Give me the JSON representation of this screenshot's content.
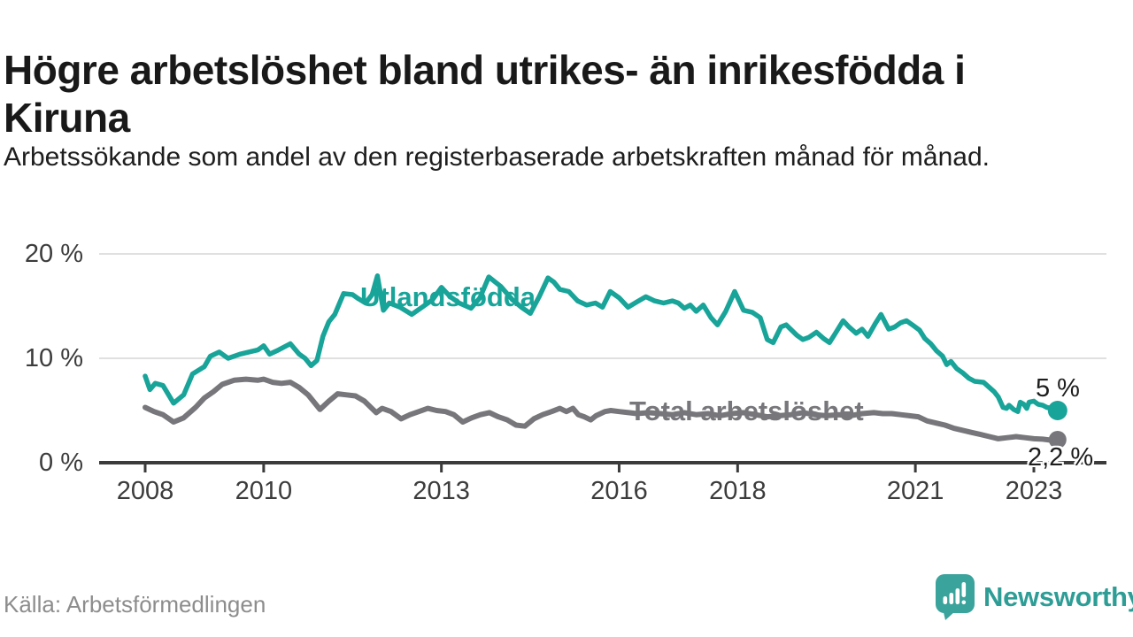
{
  "header": {
    "title": "Högre arbetslöshet bland utrikes- än inrikesfödda i Kiruna",
    "subtitle": "Arbetssökande som andel av den registerbaserade arbetskraften månad för månad."
  },
  "footer": {
    "source": "Källa: Arbetsförmedlingen",
    "brand": "Newsworthy"
  },
  "colors": {
    "accent_teal": "#18a499",
    "line_gray": "#77777b",
    "brand_teal": "#2e9d96",
    "logo_icon_teal": "#3aa39b",
    "axis": "#3b3b3b",
    "grid": "#e0e0e0",
    "text_dark": "#1d1d1d",
    "text_gray": "#8d8d8d"
  },
  "chart_data": {
    "type": "line",
    "title": "Högre arbetslöshet bland utrikes- än inrikesfödda i Kiruna",
    "xlabel": "",
    "ylabel": "",
    "unit": "%",
    "grid": "horizontal",
    "legend_position": "inline-on-line",
    "xlim": [
      2007.9,
      2023.55
    ],
    "ylim": [
      0,
      20
    ],
    "x_ticks": [
      {
        "value": 2008,
        "label": "2008"
      },
      {
        "value": 2010,
        "label": "2010"
      },
      {
        "value": 2013,
        "label": "2013"
      },
      {
        "value": 2016,
        "label": "2016"
      },
      {
        "value": 2018,
        "label": "2018"
      },
      {
        "value": 2021,
        "label": "2021"
      },
      {
        "value": 2023,
        "label": "2023"
      }
    ],
    "y_ticks": [
      {
        "value": 0,
        "label": "0 %"
      },
      {
        "value": 10,
        "label": "10 %"
      },
      {
        "value": 20,
        "label": "20 %"
      }
    ],
    "series": [
      {
        "name": "Utlandsfödda",
        "color": "#18a499",
        "end_label": "5 %",
        "end_value": 5.0,
        "points": [
          [
            2008.0,
            8.3
          ],
          [
            2008.08,
            7.0
          ],
          [
            2008.17,
            7.6
          ],
          [
            2008.3,
            7.4
          ],
          [
            2008.48,
            5.7
          ],
          [
            2008.65,
            6.5
          ],
          [
            2008.8,
            8.5
          ],
          [
            2009.0,
            9.2
          ],
          [
            2009.1,
            10.2
          ],
          [
            2009.25,
            10.6
          ],
          [
            2009.4,
            10.0
          ],
          [
            2009.6,
            10.4
          ],
          [
            2009.75,
            10.6
          ],
          [
            2009.9,
            10.8
          ],
          [
            2010.0,
            11.2
          ],
          [
            2010.1,
            10.4
          ],
          [
            2010.25,
            10.8
          ],
          [
            2010.45,
            11.4
          ],
          [
            2010.6,
            10.4
          ],
          [
            2010.7,
            10.0
          ],
          [
            2010.8,
            9.3
          ],
          [
            2010.9,
            9.8
          ],
          [
            2011.0,
            12.1
          ],
          [
            2011.1,
            13.5
          ],
          [
            2011.2,
            14.2
          ],
          [
            2011.35,
            16.2
          ],
          [
            2011.5,
            16.1
          ],
          [
            2011.6,
            15.7
          ],
          [
            2011.72,
            15.3
          ],
          [
            2011.83,
            16.1
          ],
          [
            2011.92,
            17.9
          ],
          [
            2012.02,
            14.6
          ],
          [
            2012.12,
            15.3
          ],
          [
            2012.3,
            14.9
          ],
          [
            2012.5,
            14.2
          ],
          [
            2012.7,
            15.0
          ],
          [
            2012.85,
            15.6
          ],
          [
            2013.0,
            16.8
          ],
          [
            2013.15,
            15.9
          ],
          [
            2013.3,
            15.3
          ],
          [
            2013.5,
            14.8
          ],
          [
            2013.65,
            15.8
          ],
          [
            2013.8,
            17.8
          ],
          [
            2014.0,
            16.9
          ],
          [
            2014.2,
            15.6
          ],
          [
            2014.35,
            14.9
          ],
          [
            2014.5,
            14.3
          ],
          [
            2014.65,
            15.9
          ],
          [
            2014.8,
            17.7
          ],
          [
            2014.9,
            17.3
          ],
          [
            2015.0,
            16.6
          ],
          [
            2015.15,
            16.4
          ],
          [
            2015.3,
            15.5
          ],
          [
            2015.45,
            15.1
          ],
          [
            2015.6,
            15.3
          ],
          [
            2015.72,
            14.9
          ],
          [
            2015.85,
            16.4
          ],
          [
            2016.0,
            15.8
          ],
          [
            2016.15,
            14.9
          ],
          [
            2016.3,
            15.4
          ],
          [
            2016.45,
            15.9
          ],
          [
            2016.6,
            15.5
          ],
          [
            2016.75,
            15.3
          ],
          [
            2016.9,
            15.5
          ],
          [
            2017.0,
            15.3
          ],
          [
            2017.1,
            14.8
          ],
          [
            2017.2,
            15.1
          ],
          [
            2017.3,
            14.5
          ],
          [
            2017.42,
            15.1
          ],
          [
            2017.55,
            13.9
          ],
          [
            2017.66,
            13.2
          ],
          [
            2017.8,
            14.5
          ],
          [
            2017.95,
            16.4
          ],
          [
            2018.1,
            14.6
          ],
          [
            2018.25,
            14.4
          ],
          [
            2018.38,
            13.9
          ],
          [
            2018.5,
            11.8
          ],
          [
            2018.6,
            11.5
          ],
          [
            2018.73,
            13.0
          ],
          [
            2018.82,
            13.2
          ],
          [
            2019.0,
            12.2
          ],
          [
            2019.1,
            11.8
          ],
          [
            2019.2,
            12.0
          ],
          [
            2019.33,
            12.5
          ],
          [
            2019.45,
            11.9
          ],
          [
            2019.55,
            11.5
          ],
          [
            2019.65,
            12.4
          ],
          [
            2019.78,
            13.6
          ],
          [
            2019.88,
            13.0
          ],
          [
            2020.0,
            12.4
          ],
          [
            2020.1,
            12.8
          ],
          [
            2020.2,
            12.1
          ],
          [
            2020.32,
            13.3
          ],
          [
            2020.42,
            14.2
          ],
          [
            2020.55,
            12.8
          ],
          [
            2020.65,
            13.0
          ],
          [
            2020.75,
            13.4
          ],
          [
            2020.85,
            13.6
          ],
          [
            2020.95,
            13.2
          ],
          [
            2021.07,
            12.7
          ],
          [
            2021.16,
            11.9
          ],
          [
            2021.26,
            11.4
          ],
          [
            2021.36,
            10.7
          ],
          [
            2021.46,
            10.2
          ],
          [
            2021.53,
            9.4
          ],
          [
            2021.6,
            9.7
          ],
          [
            2021.7,
            9.0
          ],
          [
            2021.8,
            8.6
          ],
          [
            2021.9,
            8.1
          ],
          [
            2022.0,
            7.8
          ],
          [
            2022.15,
            7.7
          ],
          [
            2022.25,
            7.2
          ],
          [
            2022.33,
            6.8
          ],
          [
            2022.4,
            6.3
          ],
          [
            2022.48,
            5.3
          ],
          [
            2022.54,
            5.2
          ],
          [
            2022.58,
            5.5
          ],
          [
            2022.66,
            5.1
          ],
          [
            2022.73,
            4.9
          ],
          [
            2022.77,
            5.8
          ],
          [
            2022.83,
            5.6
          ],
          [
            2022.88,
            5.2
          ],
          [
            2022.92,
            5.8
          ],
          [
            2023.0,
            5.9
          ],
          [
            2023.07,
            5.6
          ],
          [
            2023.15,
            5.5
          ],
          [
            2023.22,
            5.3
          ],
          [
            2023.3,
            5.2
          ],
          [
            2023.4,
            5.0
          ]
        ]
      },
      {
        "name": "Total arbetslöshet",
        "color": "#77777b",
        "end_label": "2,2 %",
        "end_value": 2.2,
        "points": [
          [
            2008.0,
            5.3
          ],
          [
            2008.15,
            4.9
          ],
          [
            2008.3,
            4.6
          ],
          [
            2008.48,
            3.9
          ],
          [
            2008.65,
            4.3
          ],
          [
            2008.85,
            5.3
          ],
          [
            2009.0,
            6.2
          ],
          [
            2009.15,
            6.8
          ],
          [
            2009.3,
            7.5
          ],
          [
            2009.5,
            7.9
          ],
          [
            2009.7,
            8.0
          ],
          [
            2009.9,
            7.9
          ],
          [
            2010.0,
            8.0
          ],
          [
            2010.15,
            7.7
          ],
          [
            2010.3,
            7.6
          ],
          [
            2010.45,
            7.7
          ],
          [
            2010.6,
            7.2
          ],
          [
            2010.75,
            6.5
          ],
          [
            2010.95,
            5.1
          ],
          [
            2011.1,
            5.9
          ],
          [
            2011.25,
            6.6
          ],
          [
            2011.4,
            6.5
          ],
          [
            2011.55,
            6.4
          ],
          [
            2011.7,
            5.9
          ],
          [
            2011.9,
            4.8
          ],
          [
            2012.0,
            5.2
          ],
          [
            2012.15,
            4.9
          ],
          [
            2012.32,
            4.2
          ],
          [
            2012.47,
            4.6
          ],
          [
            2012.62,
            4.9
          ],
          [
            2012.77,
            5.2
          ],
          [
            2012.92,
            5.0
          ],
          [
            2013.07,
            4.9
          ],
          [
            2013.21,
            4.6
          ],
          [
            2013.36,
            3.9
          ],
          [
            2013.51,
            4.3
          ],
          [
            2013.66,
            4.6
          ],
          [
            2013.81,
            4.8
          ],
          [
            2013.96,
            4.4
          ],
          [
            2014.11,
            4.1
          ],
          [
            2014.26,
            3.6
          ],
          [
            2014.41,
            3.5
          ],
          [
            2014.56,
            4.2
          ],
          [
            2014.71,
            4.6
          ],
          [
            2014.86,
            4.9
          ],
          [
            2015.0,
            5.2
          ],
          [
            2015.11,
            4.9
          ],
          [
            2015.22,
            5.2
          ],
          [
            2015.31,
            4.6
          ],
          [
            2015.41,
            4.4
          ],
          [
            2015.52,
            4.1
          ],
          [
            2015.61,
            4.5
          ],
          [
            2015.76,
            4.9
          ],
          [
            2015.86,
            5.0
          ],
          [
            2016.0,
            4.9
          ],
          [
            2016.16,
            4.8
          ],
          [
            2016.3,
            4.7
          ],
          [
            2016.5,
            4.8
          ],
          [
            2016.7,
            4.7
          ],
          [
            2016.9,
            4.6
          ],
          [
            2017.1,
            4.8
          ],
          [
            2017.3,
            4.6
          ],
          [
            2017.5,
            4.7
          ],
          [
            2017.7,
            4.5
          ],
          [
            2017.9,
            4.7
          ],
          [
            2018.1,
            4.8
          ],
          [
            2018.3,
            4.6
          ],
          [
            2018.5,
            4.4
          ],
          [
            2018.7,
            4.5
          ],
          [
            2018.9,
            4.6
          ],
          [
            2019.1,
            4.8
          ],
          [
            2019.3,
            4.6
          ],
          [
            2019.5,
            4.5
          ],
          [
            2019.7,
            4.6
          ],
          [
            2019.9,
            4.5
          ],
          [
            2020.1,
            4.7
          ],
          [
            2020.3,
            4.8
          ],
          [
            2020.45,
            4.7
          ],
          [
            2020.6,
            4.7
          ],
          [
            2020.75,
            4.6
          ],
          [
            2020.9,
            4.5
          ],
          [
            2021.05,
            4.4
          ],
          [
            2021.2,
            4.0
          ],
          [
            2021.35,
            3.8
          ],
          [
            2021.5,
            3.6
          ],
          [
            2021.65,
            3.3
          ],
          [
            2021.8,
            3.1
          ],
          [
            2021.95,
            2.9
          ],
          [
            2022.1,
            2.7
          ],
          [
            2022.25,
            2.5
          ],
          [
            2022.4,
            2.3
          ],
          [
            2022.55,
            2.4
          ],
          [
            2022.7,
            2.5
          ],
          [
            2022.85,
            2.4
          ],
          [
            2023.0,
            2.3
          ],
          [
            2023.15,
            2.25
          ],
          [
            2023.3,
            2.15
          ],
          [
            2023.4,
            2.2
          ]
        ]
      }
    ]
  }
}
